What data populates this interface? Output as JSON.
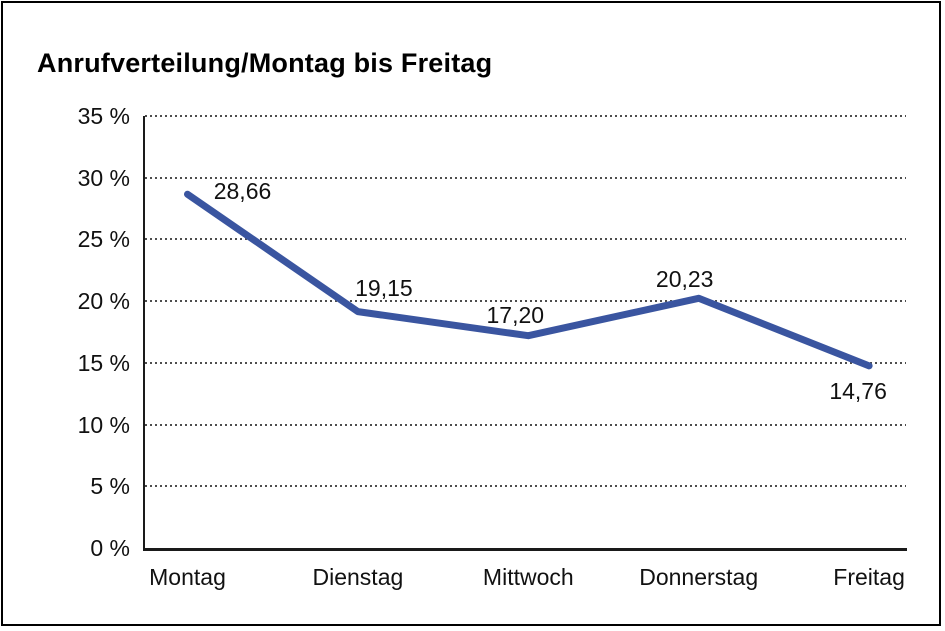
{
  "page": {
    "title": "Anrufverteilung/Montag bis Freitag"
  },
  "chart_data": {
    "type": "line",
    "title": "Anrufverteilung/Montag bis Freitag",
    "categories": [
      "Montag",
      "Dienstag",
      "Mittwoch",
      "Donnerstag",
      "Freitag"
    ],
    "values": [
      28.66,
      19.15,
      17.2,
      20.23,
      14.76
    ],
    "point_labels": [
      "28,66",
      "19,15",
      "17,20",
      "20,23",
      "14,76"
    ],
    "xlabel": "",
    "ylabel": "",
    "ylim": [
      0,
      35
    ],
    "y_ticks": [
      {
        "value": 35,
        "label": "35 %"
      },
      {
        "value": 30,
        "label": "30 %"
      },
      {
        "value": 25,
        "label": "25 %"
      },
      {
        "value": 20,
        "label": "20 %"
      },
      {
        "value": 15,
        "label": "15 %"
      },
      {
        "value": 10,
        "label": "10 %"
      },
      {
        "value": 5,
        "label": "5 %"
      },
      {
        "value": 0,
        "label": "0 %"
      }
    ],
    "grid": "horizontal-dotted",
    "legend_position": "none",
    "line_color": "#3A55A0",
    "text_color": "#111111",
    "background": "#FFFFFF",
    "border_color": "#000000"
  }
}
